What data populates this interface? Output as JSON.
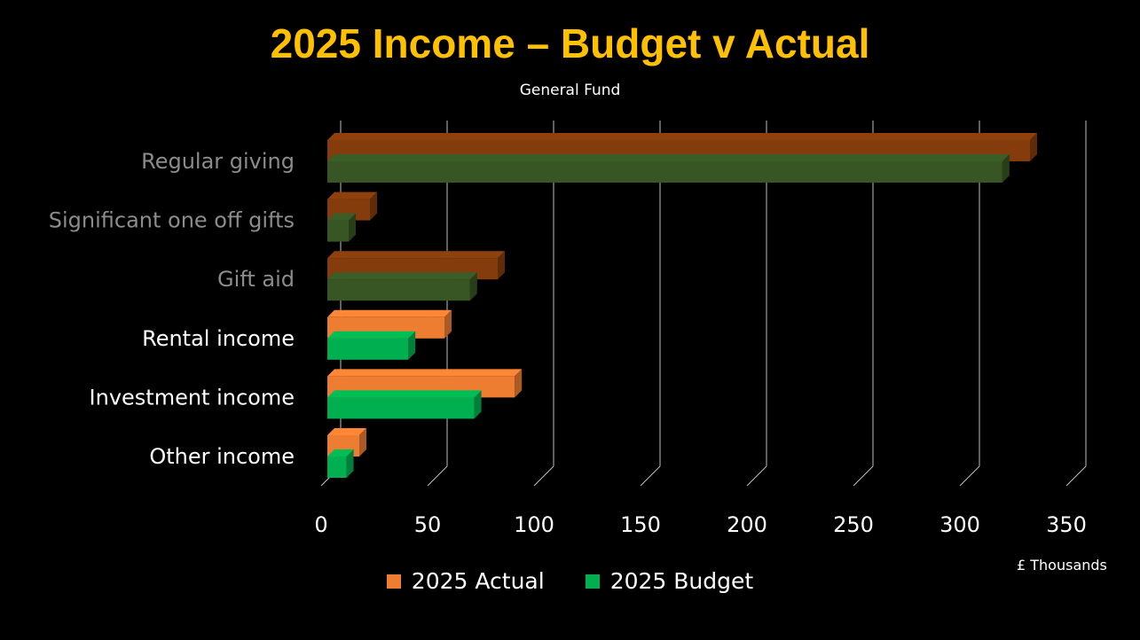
{
  "title": "2025 Income – Budget v Actual",
  "subtitle": "General Fund",
  "unit_label": "£ Thousands",
  "colors": {
    "title": "#FFC000",
    "actual_primary": "#ED7D31",
    "budget_primary": "#00B050",
    "actual_dim": "#843C0C",
    "budget_dim": "#375623",
    "label_primary": "#FFFFFF",
    "label_dim": "#8C8C8C",
    "grid": "#BFBFBF"
  },
  "legend": [
    {
      "label": "2025 Actual",
      "color": "#ED7D31"
    },
    {
      "label": "2025 Budget",
      "color": "#00B050"
    }
  ],
  "chart_data": {
    "type": "bar",
    "orientation": "horizontal",
    "style": "3d-clustered",
    "categories": [
      {
        "label": "Regular giving",
        "dimmed": true
      },
      {
        "label": "Significant one off gifts",
        "dimmed": true
      },
      {
        "label": "Gift aid",
        "dimmed": true
      },
      {
        "label": "Rental income",
        "dimmed": false
      },
      {
        "label": "Investment income",
        "dimmed": false
      },
      {
        "label": "Other income",
        "dimmed": false
      }
    ],
    "series": [
      {
        "name": "2025 Actual",
        "values": [
          330,
          20,
          80,
          55,
          88,
          15
        ]
      },
      {
        "name": "2025 Budget",
        "values": [
          317,
          10,
          67,
          38,
          69,
          9
        ]
      }
    ],
    "xlim": [
      0,
      350
    ],
    "xticks": [
      "0",
      "50",
      "100",
      "150",
      "200",
      "250",
      "300",
      "350"
    ],
    "xlabel": "£ Thousands",
    "ylabel": "",
    "grid": true,
    "legend_position": "bottom"
  }
}
